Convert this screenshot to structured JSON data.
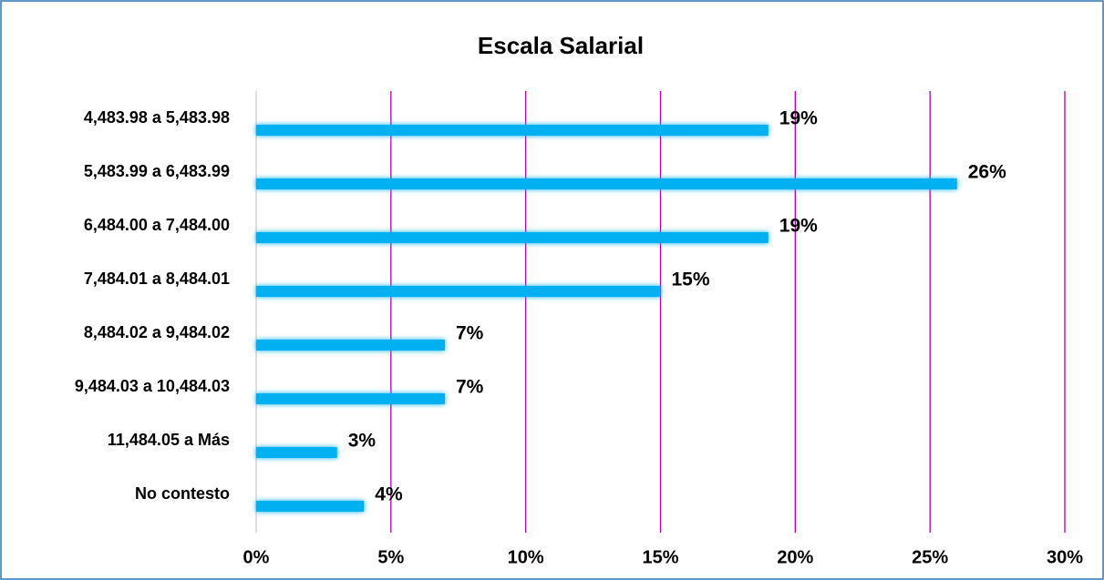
{
  "chart_data": {
    "type": "bar",
    "orientation": "horizontal",
    "title": "Escala Salarial",
    "categories": [
      "4,483.98 a 5,483.98",
      "5,483.99 a 6,483.99",
      "6,484.00 a 7,484.00",
      "7,484.01 a 8,484.01",
      "8,484.02 a 9,484.02",
      "9,484.03 a 10,484.03",
      "11,484.05 a Más",
      "No contesto"
    ],
    "values": [
      19,
      26,
      19,
      15,
      7,
      7,
      3,
      4
    ],
    "value_labels": [
      "19%",
      "26%",
      "19%",
      "15%",
      "7%",
      "7%",
      "3%",
      "4%"
    ],
    "color": "#00b0f0",
    "xlim": [
      0,
      30
    ],
    "xticks": [
      {
        "value": 0,
        "label": "0%"
      },
      {
        "value": 5,
        "label": "5%"
      },
      {
        "value": 10,
        "label": "10%"
      },
      {
        "value": 15,
        "label": "15%"
      },
      {
        "value": 20,
        "label": "20%"
      },
      {
        "value": 25,
        "label": "25%"
      },
      {
        "value": 30,
        "label": "30%"
      }
    ],
    "grid": true
  }
}
